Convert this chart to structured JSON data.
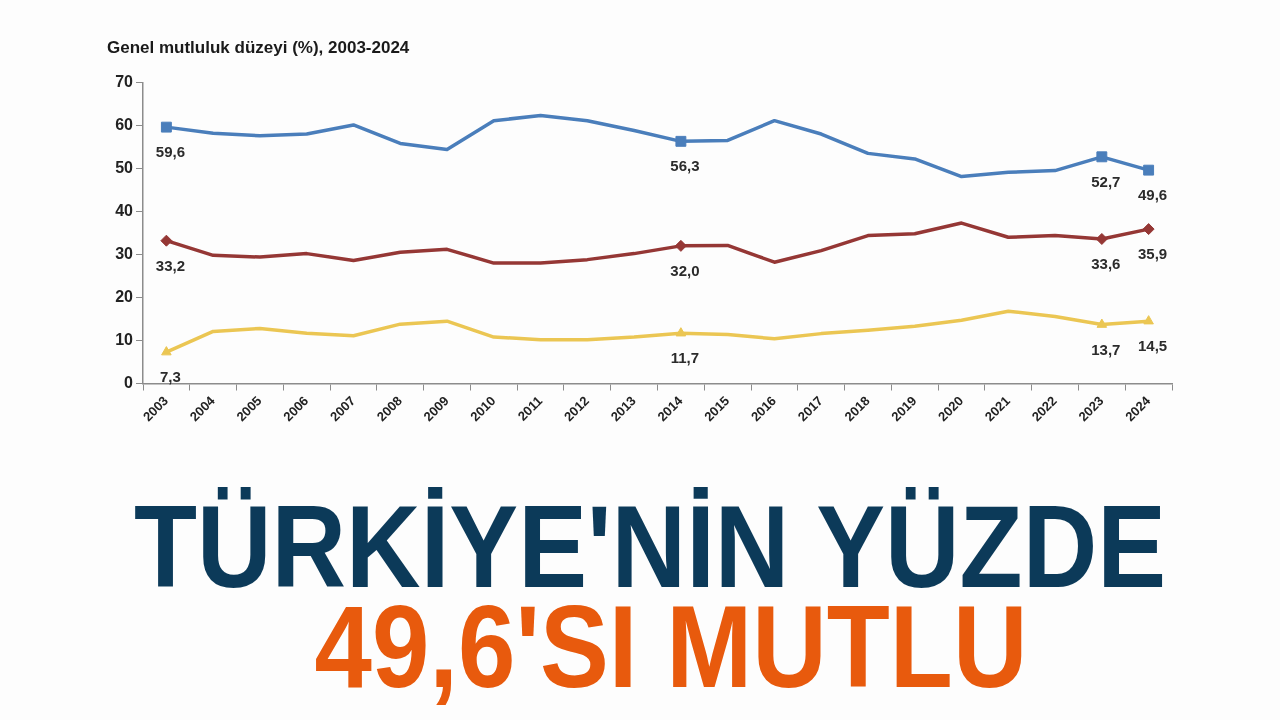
{
  "chart_data": {
    "type": "line",
    "title": "Genel mutluluk düzeyi (%), 2003-2024",
    "categories": [
      "2003",
      "2004",
      "2005",
      "2006",
      "2007",
      "2008",
      "2009",
      "2010",
      "2011",
      "2012",
      "2013",
      "2014",
      "2015",
      "2016",
      "2017",
      "2018",
      "2019",
      "2020",
      "2021",
      "2022",
      "2023",
      "2024"
    ],
    "series": [
      {
        "color": "#4a7ebb",
        "values": [
          59.6,
          58.2,
          57.6,
          58.0,
          60.1,
          55.8,
          54.4,
          61.1,
          62.3,
          61.1,
          58.8,
          56.3,
          56.5,
          61.1,
          58.0,
          53.5,
          52.2,
          48.1,
          49.1,
          49.5,
          52.7,
          49.6
        ]
      },
      {
        "type": "scatter",
        "color": "#4a7ebb",
        "marker": "square",
        "values": [
          59.6,
          null,
          null,
          null,
          null,
          null,
          null,
          null,
          null,
          null,
          null,
          56.3,
          null,
          null,
          null,
          null,
          null,
          null,
          null,
          null,
          52.7,
          49.6
        ],
        "value_labels": [
          "59,6",
          null,
          null,
          null,
          null,
          null,
          null,
          null,
          null,
          null,
          null,
          "56,3",
          null,
          null,
          null,
          null,
          null,
          null,
          null,
          null,
          "52,7",
          "49,6"
        ]
      },
      {
        "color": "#953735",
        "values": [
          33.2,
          29.8,
          29.4,
          30.2,
          28.6,
          30.5,
          31.2,
          28.0,
          28.0,
          28.8,
          30.2,
          32.0,
          32.1,
          28.2,
          30.9,
          34.4,
          34.8,
          37.3,
          34.0,
          34.4,
          33.6,
          35.9
        ]
      },
      {
        "type": "scatter",
        "color": "#953735",
        "marker": "diamond",
        "values": [
          33.2,
          null,
          null,
          null,
          null,
          null,
          null,
          null,
          null,
          null,
          null,
          32.0,
          null,
          null,
          null,
          null,
          null,
          null,
          null,
          null,
          33.6,
          35.9
        ],
        "value_labels": [
          "33,2",
          null,
          null,
          null,
          null,
          null,
          null,
          null,
          null,
          null,
          null,
          "32,0",
          null,
          null,
          null,
          null,
          null,
          null,
          null,
          null,
          "33,6",
          "35,9"
        ]
      },
      {
        "color": "#ebc653",
        "values": [
          7.3,
          12.1,
          12.8,
          11.7,
          11.1,
          13.8,
          14.5,
          10.8,
          10.2,
          10.2,
          10.8,
          11.7,
          11.4,
          10.4,
          11.6,
          12.4,
          13.3,
          14.7,
          16.8,
          15.6,
          13.7,
          14.5
        ]
      },
      {
        "type": "scatter",
        "color": "#ebc653",
        "marker": "triangle",
        "values": [
          7.3,
          null,
          null,
          null,
          null,
          null,
          null,
          null,
          null,
          null,
          null,
          11.7,
          null,
          null,
          null,
          null,
          null,
          null,
          null,
          null,
          13.7,
          14.5
        ],
        "value_labels": [
          "7,3",
          null,
          null,
          null,
          null,
          null,
          null,
          null,
          null,
          null,
          null,
          "11,7",
          null,
          null,
          null,
          null,
          null,
          null,
          null,
          null,
          "13,7",
          "14,5"
        ]
      }
    ],
    "ylim": [
      0,
      70
    ],
    "yticks": [
      0,
      10,
      20,
      30,
      40,
      50,
      60,
      70
    ],
    "annotations": [
      "TÜRKİYE'NİN YÜZDE",
      "49,6'SI MUTLU"
    ]
  }
}
